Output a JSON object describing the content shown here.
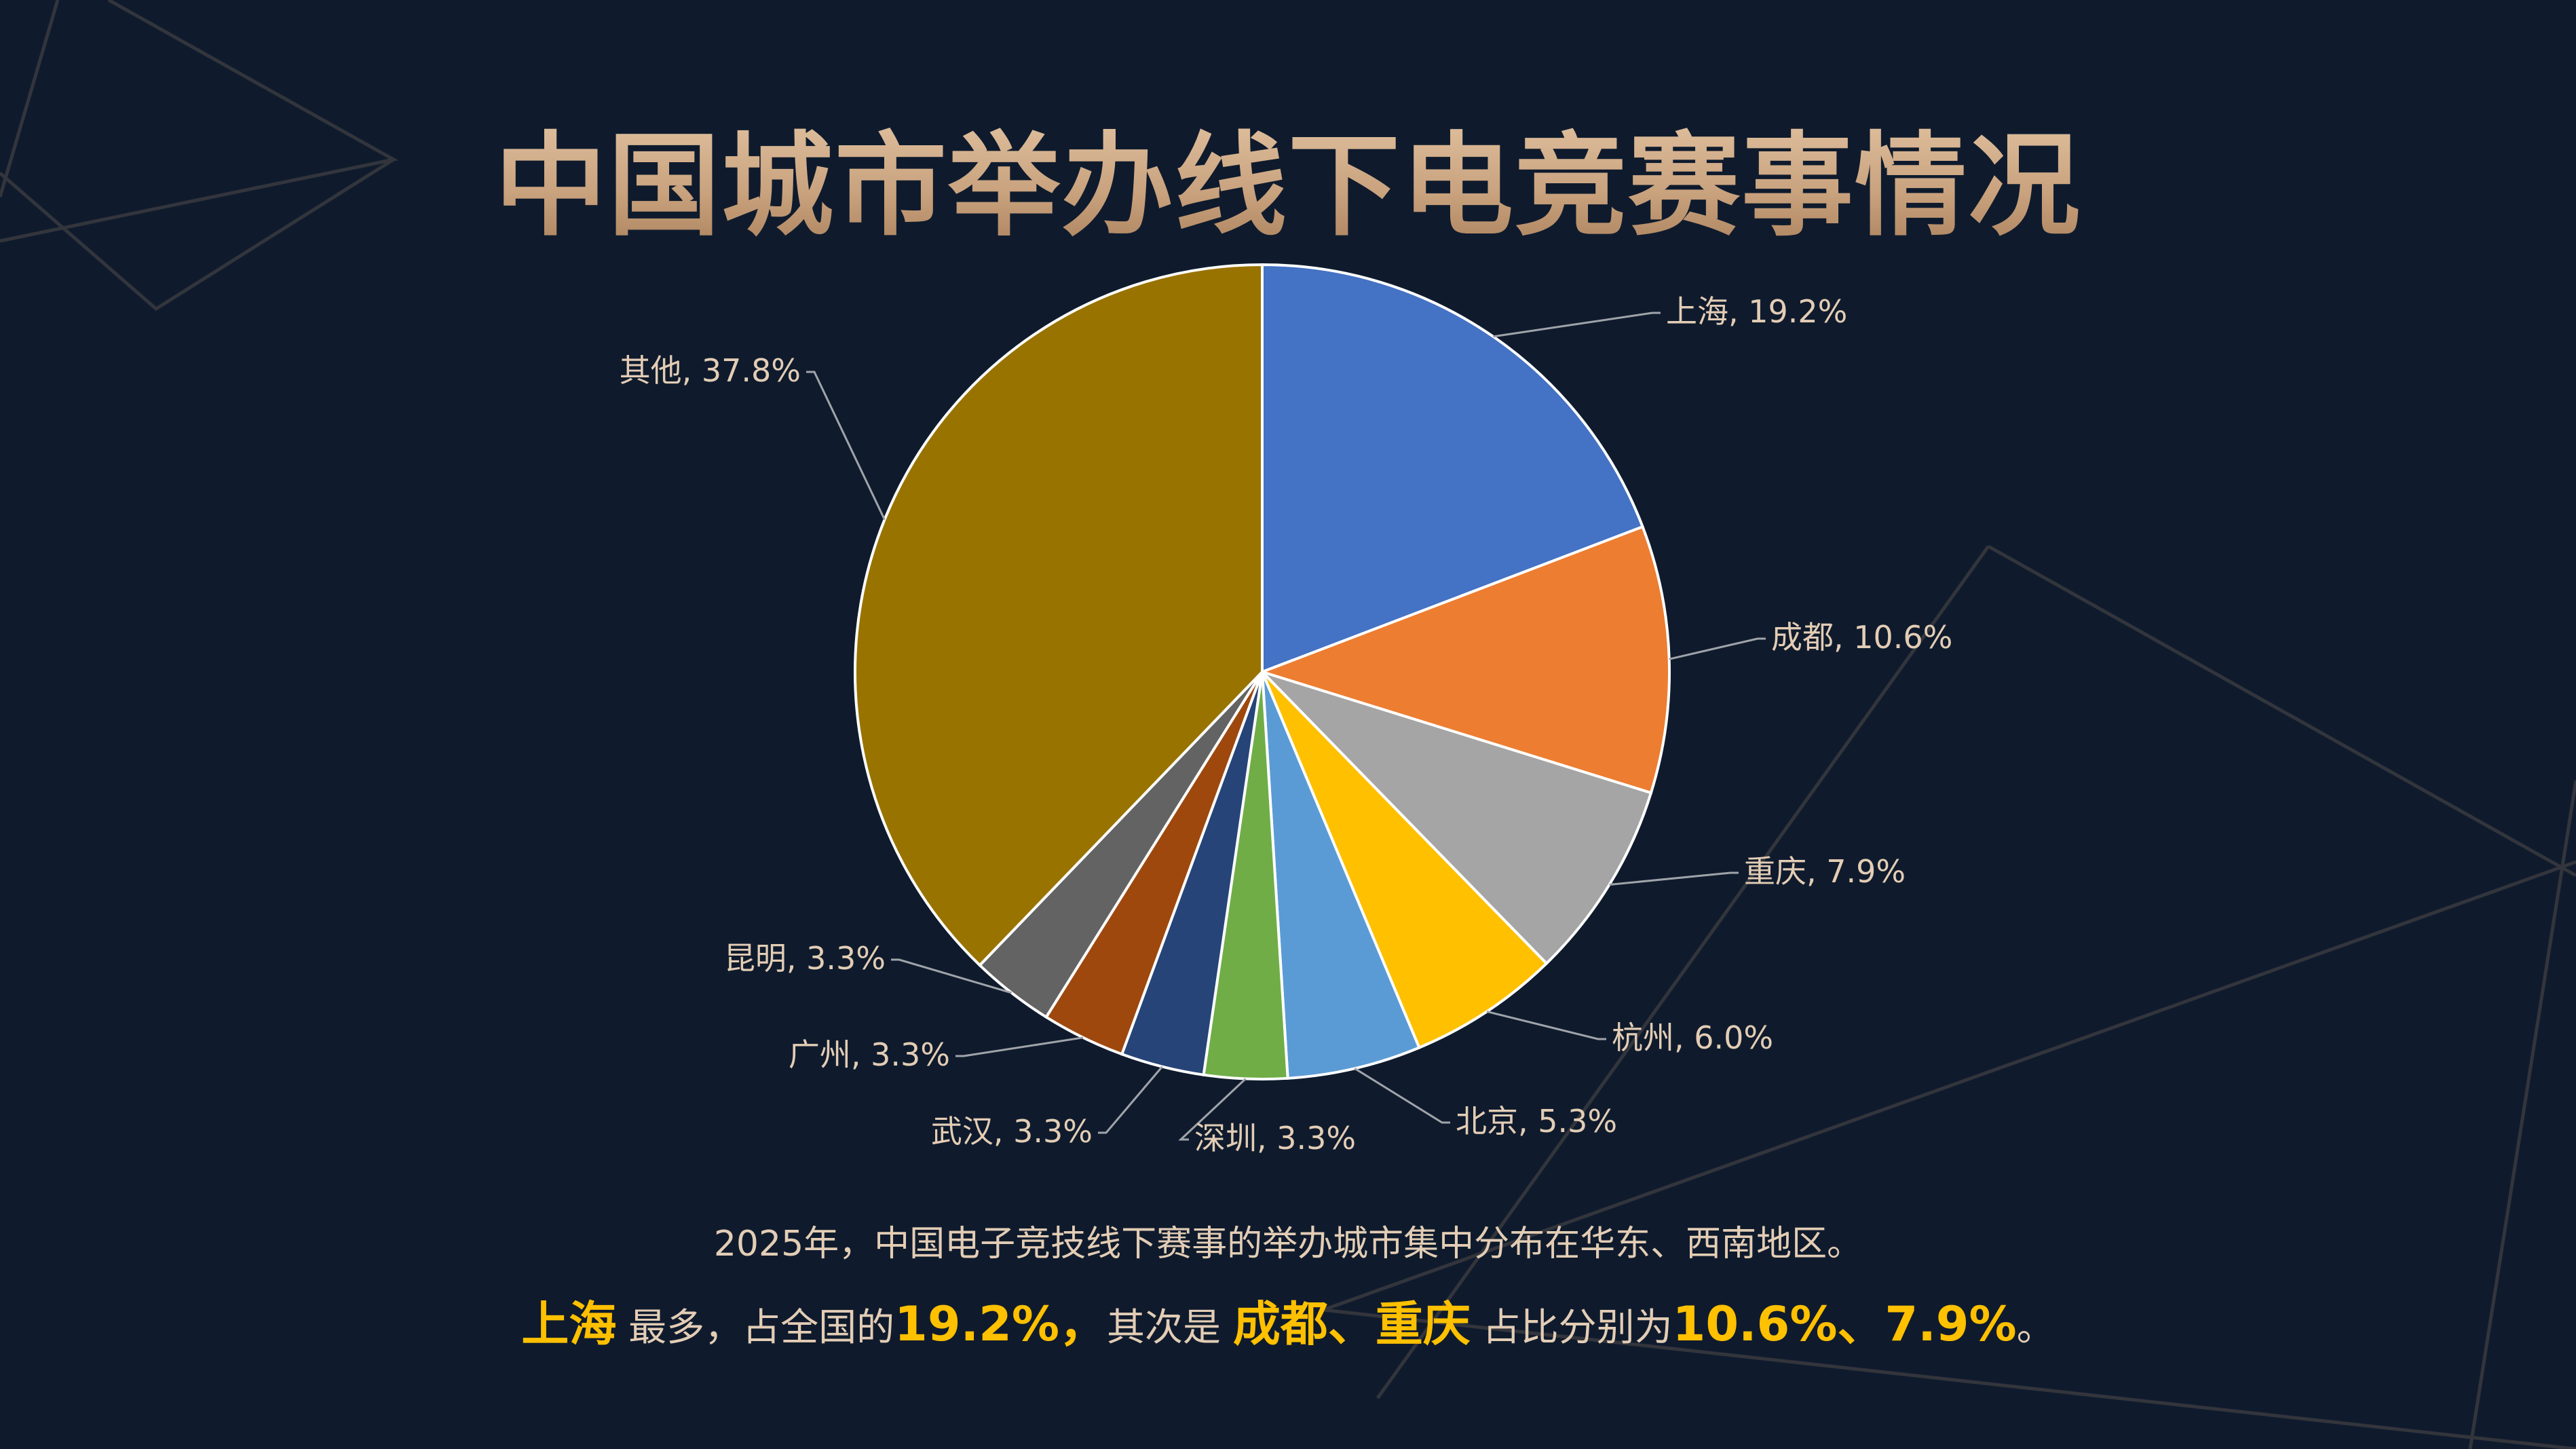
{
  "title": "中国城市举办线下电竞赛事情况",
  "colors": {
    "background": "#0f1b2d",
    "title": "#d9b896",
    "label": "#e3cdb5",
    "highlight": "#ffc000",
    "leader": "#a0a4aa"
  },
  "chart_data": {
    "type": "pie",
    "title": "中国城市举办线下电竞赛事情况",
    "start_angle_deg": 0,
    "direction": "clockwise",
    "slices": [
      {
        "label": "上海",
        "value": 19.2,
        "color": "#4472c4",
        "text": "上海, 19.2%"
      },
      {
        "label": "成都",
        "value": 10.6,
        "color": "#ed7d31",
        "text": "成都, 10.6%"
      },
      {
        "label": "重庆",
        "value": 7.9,
        "color": "#a5a5a5",
        "text": "重庆, 7.9%"
      },
      {
        "label": "杭州",
        "value": 6.0,
        "color": "#ffc000",
        "text": "杭州, 6.0%"
      },
      {
        "label": "北京",
        "value": 5.3,
        "color": "#5b9bd5",
        "text": "北京, 5.3%"
      },
      {
        "label": "深圳",
        "value": 3.3,
        "color": "#70ad47",
        "text": "深圳, 3.3%"
      },
      {
        "label": "武汉",
        "value": 3.3,
        "color": "#264478",
        "text": "武汉, 3.3%"
      },
      {
        "label": "广州",
        "value": 3.3,
        "color": "#9e480e",
        "text": "广州, 3.3%"
      },
      {
        "label": "昆明",
        "value": 3.3,
        "color": "#636363",
        "text": "昆明, 3.3%"
      },
      {
        "label": "其他",
        "value": 37.8,
        "color": "#997300",
        "text": "其他, 37.8%"
      }
    ],
    "legend": "none",
    "data_labels": "category, percentage with leader lines"
  },
  "summary": {
    "line1": "2025年，中国电子竞技线下赛事的举办城市集中分布在华东、西南地区。",
    "line2": {
      "p1": "上海",
      "p2": " 最多，占全国的",
      "p3": "19.2%，",
      "p4": "其次是 ",
      "p5": "成都、重庆",
      "p6": " 占比分别为",
      "p7": "10.6%、7.9%",
      "p8": "。"
    }
  }
}
